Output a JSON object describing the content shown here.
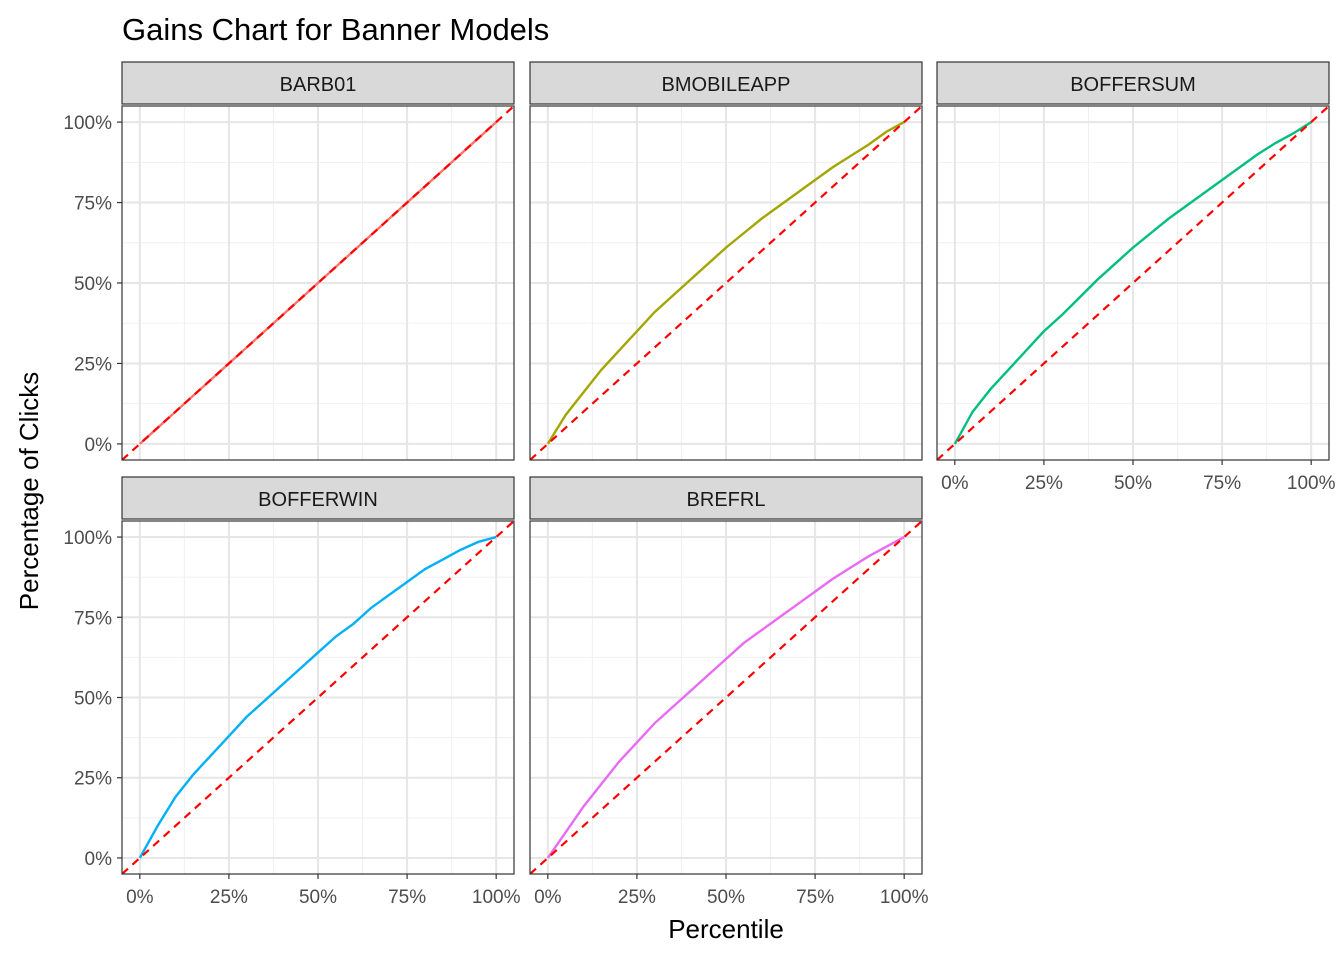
{
  "chart_data": {
    "type": "line",
    "title": "Gains Chart for Banner Models",
    "xlabel": "Percentile",
    "ylabel": "Percentage of Clicks",
    "xlim": [
      -0.05,
      1.05
    ],
    "ylim": [
      -0.05,
      1.05
    ],
    "x_ticks": [
      "0%",
      "25%",
      "50%",
      "75%",
      "100%"
    ],
    "y_ticks": [
      "0%",
      "25%",
      "50%",
      "75%",
      "100%"
    ],
    "grid": true,
    "reference_line": {
      "color": "#ff0000",
      "style": "dashed",
      "from": [
        0,
        0
      ],
      "to": [
        1,
        1
      ]
    },
    "facets": [
      {
        "name": "BARB01",
        "color": "#f8766d",
        "x": [
          0,
          0.05,
          0.1,
          0.15,
          0.2,
          0.25,
          0.3,
          0.35,
          0.4,
          0.45,
          0.5,
          0.55,
          0.6,
          0.65,
          0.7,
          0.75,
          0.8,
          0.85,
          0.9,
          0.95,
          1.0
        ],
        "y": [
          0,
          0.05,
          0.1,
          0.15,
          0.2,
          0.25,
          0.3,
          0.35,
          0.4,
          0.45,
          0.5,
          0.55,
          0.6,
          0.65,
          0.7,
          0.75,
          0.8,
          0.85,
          0.9,
          0.95,
          1.0
        ]
      },
      {
        "name": "BMOBILEAPP",
        "color": "#a3a500",
        "x": [
          0,
          0.05,
          0.1,
          0.15,
          0.2,
          0.25,
          0.3,
          0.35,
          0.4,
          0.45,
          0.5,
          0.55,
          0.6,
          0.65,
          0.7,
          0.75,
          0.8,
          0.85,
          0.9,
          0.95,
          1.0
        ],
        "y": [
          0,
          0.09,
          0.16,
          0.23,
          0.29,
          0.35,
          0.41,
          0.46,
          0.51,
          0.56,
          0.61,
          0.655,
          0.7,
          0.74,
          0.78,
          0.82,
          0.86,
          0.895,
          0.93,
          0.97,
          1.0
        ]
      },
      {
        "name": "BOFFERSUM",
        "color": "#00bf7d",
        "x": [
          0,
          0.05,
          0.1,
          0.15,
          0.2,
          0.25,
          0.3,
          0.35,
          0.4,
          0.45,
          0.5,
          0.55,
          0.6,
          0.65,
          0.7,
          0.75,
          0.8,
          0.85,
          0.9,
          0.95,
          1.0
        ],
        "y": [
          0,
          0.1,
          0.17,
          0.23,
          0.29,
          0.35,
          0.4,
          0.455,
          0.51,
          0.56,
          0.61,
          0.655,
          0.7,
          0.74,
          0.78,
          0.82,
          0.86,
          0.9,
          0.935,
          0.965,
          1.0
        ]
      },
      {
        "name": "BOFFERWIN",
        "color": "#00b0f6",
        "x": [
          0,
          0.05,
          0.1,
          0.15,
          0.2,
          0.25,
          0.3,
          0.35,
          0.4,
          0.45,
          0.5,
          0.55,
          0.6,
          0.65,
          0.7,
          0.75,
          0.8,
          0.85,
          0.9,
          0.95,
          1.0
        ],
        "y": [
          0,
          0.1,
          0.19,
          0.26,
          0.32,
          0.38,
          0.44,
          0.49,
          0.54,
          0.59,
          0.64,
          0.69,
          0.73,
          0.78,
          0.82,
          0.86,
          0.9,
          0.93,
          0.96,
          0.985,
          1.0
        ]
      },
      {
        "name": "BREFRL",
        "color": "#e76bf3",
        "x": [
          0,
          0.05,
          0.1,
          0.15,
          0.2,
          0.25,
          0.3,
          0.35,
          0.4,
          0.45,
          0.5,
          0.55,
          0.6,
          0.65,
          0.7,
          0.75,
          0.8,
          0.85,
          0.9,
          0.95,
          1.0
        ],
        "y": [
          0,
          0.08,
          0.16,
          0.23,
          0.3,
          0.36,
          0.42,
          0.47,
          0.52,
          0.57,
          0.62,
          0.67,
          0.71,
          0.75,
          0.79,
          0.83,
          0.87,
          0.905,
          0.94,
          0.97,
          1.0
        ]
      }
    ]
  }
}
